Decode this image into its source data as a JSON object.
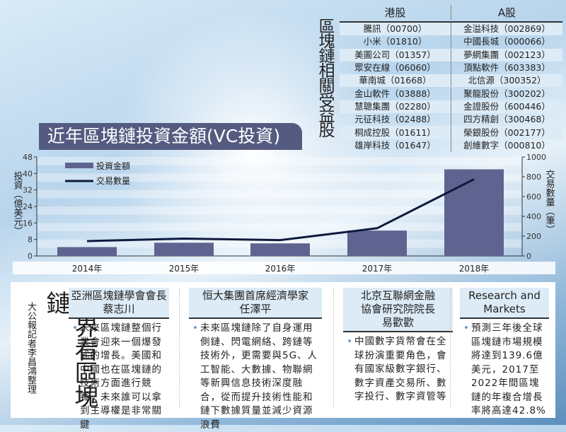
{
  "stocks_table": {
    "title": "區塊鏈相關受益股",
    "headers": [
      "港股",
      "A股"
    ],
    "rows": [
      [
        "騰訊（00700）",
        "金溢科技（002869）"
      ],
      [
        "小米（01810）",
        "中國長城（000066）"
      ],
      [
        "美圖公司（01357）",
        "夢網集團（002123）"
      ],
      [
        "眾安在線（06060）",
        "頂點軟件（603383）"
      ],
      [
        "華南城（01668）",
        "北信源（300352）"
      ],
      [
        "金山軟件（03888）",
        "聚龍股份（300202）"
      ],
      [
        "慧聰集團（02280）",
        "金證股份（600446）"
      ],
      [
        "元征科技（02488）",
        "四方精創（300468）"
      ],
      [
        "桐成控股（01611）",
        "榮銀股份（002177）"
      ],
      [
        "雄岸科技（01647）",
        "創維數字（000810）"
      ]
    ]
  },
  "chart_data": {
    "type": "bar+line",
    "title": "近年區塊鏈投資金額(VC投資)",
    "categories": [
      "2014年",
      "2015年",
      "2016年",
      "2017年",
      "2018年"
    ],
    "series": [
      {
        "name": "投資金額",
        "type": "bar",
        "axis": "left",
        "values": [
          4.3,
          6.4,
          6.1,
          12.3,
          42
        ],
        "color": "#5f6390"
      },
      {
        "name": "交易數量",
        "type": "line",
        "axis": "right",
        "values": [
          150,
          175,
          160,
          280,
          775
        ],
        "color": "#0d1a3d"
      }
    ],
    "ylabel": "投資（億美元）",
    "ylabel_right": "交易數量（筆）",
    "ylim": [
      0,
      48
    ],
    "yticks": [
      "0",
      "8",
      "16",
      "24",
      "32",
      "40",
      "48"
    ],
    "ylim_right": [
      0,
      1000
    ],
    "yticks_right": [
      "0",
      "200",
      "400",
      "600",
      "800",
      "1000"
    ],
    "legend": "top-left",
    "grid": false
  },
  "opinions": {
    "section_title": "各界看區塊鏈",
    "byline": "大公報記者李昌鴻整理",
    "items": [
      {
        "header": [
          "亞洲區塊鏈學會會長",
          "蔡志川"
        ],
        "text": "未來區塊鏈整個行業會迎來一個爆發式的增長。美國和中國也在區塊鏈的技術方面進行競賽，未來誰可以拿到主導權是非常關鍵"
      },
      {
        "header": [
          "恒大集團首席經濟學家",
          "任澤平"
        ],
        "text": "未來區塊鏈除了自身運用側鏈、閃電網絡、跨鏈等技術外，更需要與5G、人工智能、大數據、物聯網等新興信息技術深度融合，從而提升技術性能和鏈下數據質量並減少資源浪費"
      },
      {
        "header": [
          "北京互聯網金融",
          "協會研究院院長",
          "易歡歡"
        ],
        "text": "中國數字貨幣會在全球扮演重要角色，會有國家級數字銀行、數字資產交易所、數字投行、數字資管等"
      },
      {
        "header": [
          "Research and",
          "Markets"
        ],
        "text": "預測三年後全球區塊鏈市場規模將達到139.6億美元，2017至2022年間區塊鏈的年複合增長率將高達42.8%"
      }
    ]
  }
}
